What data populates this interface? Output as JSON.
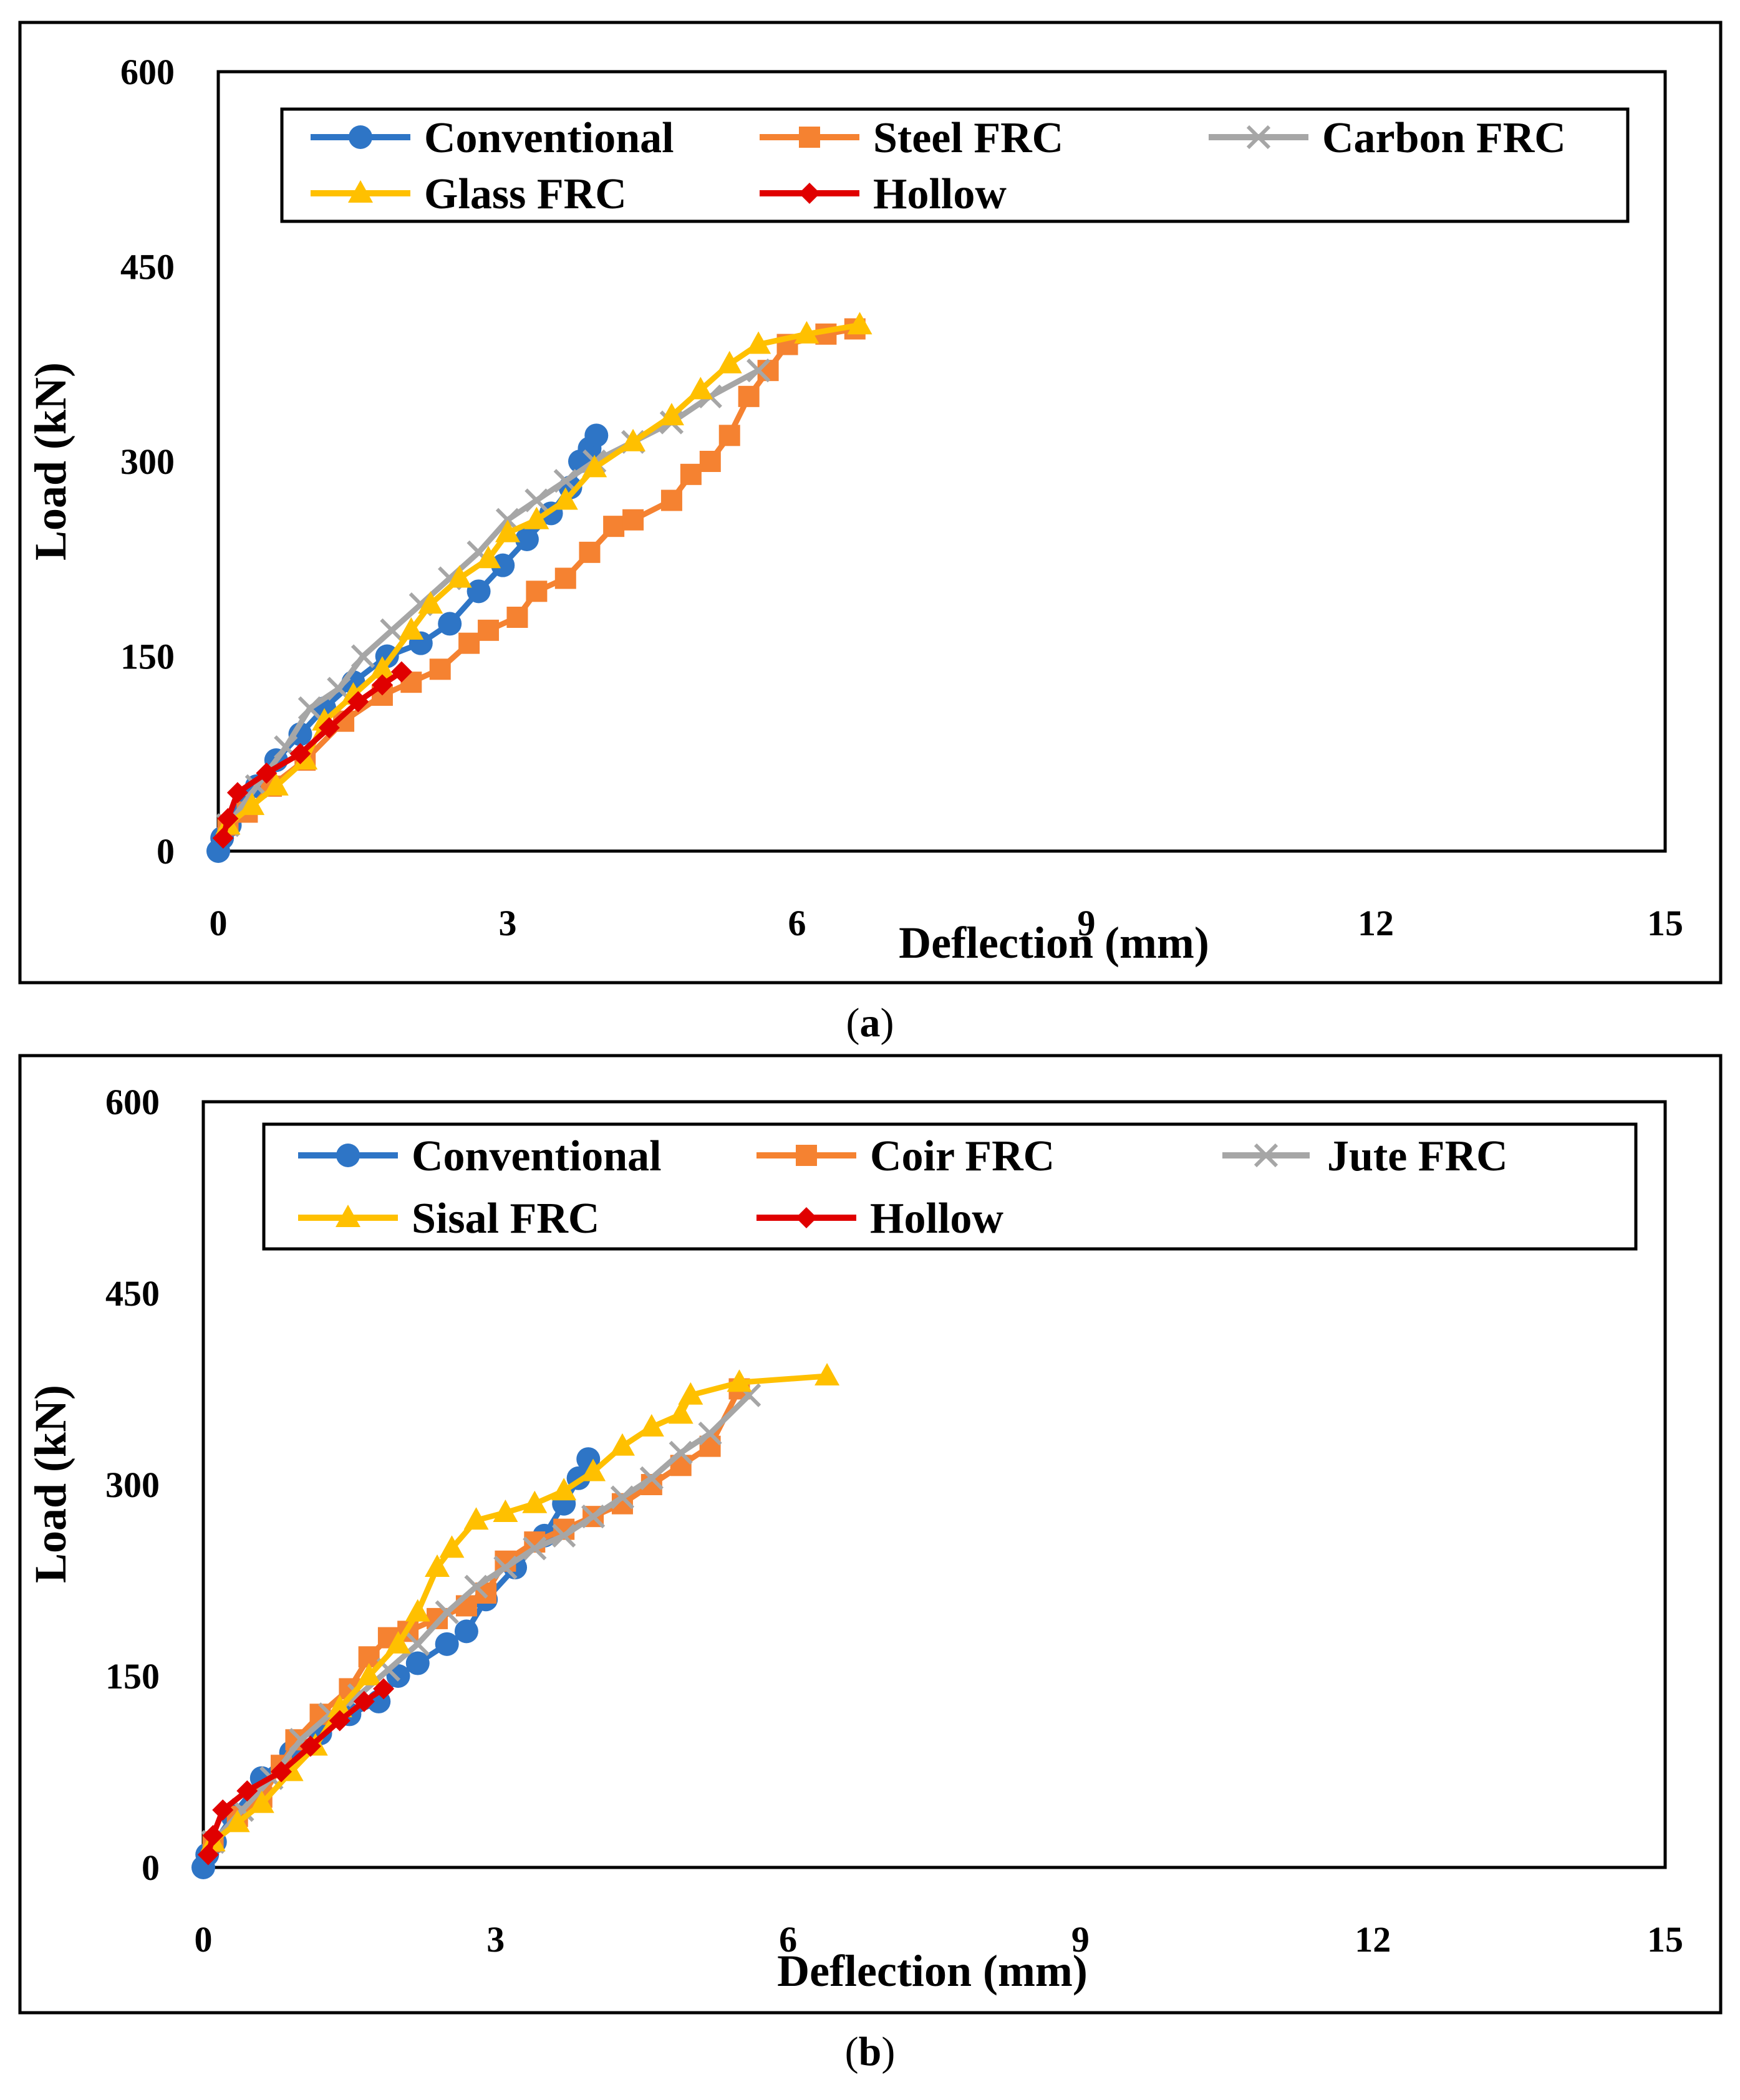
{
  "colors": {
    "Conventional": "#2E75C6",
    "Steel FRC": "#F58231",
    "Carbon FRC": "#A6A6A6",
    "Glass FRC": "#FFC000",
    "Hollow": "#E00000",
    "Coir FRC": "#F58231",
    "Jute FRC": "#A6A6A6",
    "Sisal FRC": "#FFC000"
  },
  "chart_data": [
    {
      "type": "line",
      "panel_caption": "(a)",
      "caption_letter": "a",
      "xlabel": "Deflection (mm)",
      "ylabel": "Load (kN)",
      "xlim": [
        0,
        15
      ],
      "ylim": [
        0,
        600
      ],
      "xticks": [
        0,
        3,
        6,
        9,
        12,
        15
      ],
      "yticks": [
        0,
        150,
        300,
        450,
        600
      ],
      "grid": false,
      "legend": "top",
      "series": [
        {
          "name": "Conventional",
          "marker": "circle",
          "color": "#2E75C6",
          "points": [
            [
              0,
              0
            ],
            [
              0.04,
              10
            ],
            [
              0.12,
              20
            ],
            [
              0.25,
              35
            ],
            [
              0.4,
              50
            ],
            [
              0.6,
              70
            ],
            [
              0.85,
              90
            ],
            [
              1.1,
              110
            ],
            [
              1.4,
              130
            ],
            [
              1.75,
              150
            ],
            [
              2.1,
              160
            ],
            [
              2.4,
              175
            ],
            [
              2.7,
              200
            ],
            [
              2.95,
              220
            ],
            [
              3.2,
              240
            ],
            [
              3.45,
              260
            ],
            [
              3.65,
              280
            ],
            [
              3.75,
              300
            ],
            [
              3.85,
              310
            ],
            [
              3.92,
              320
            ]
          ]
        },
        {
          "name": "Steel FRC",
          "marker": "square",
          "color": "#F58231",
          "points": [
            [
              0.1,
              20
            ],
            [
              0.3,
              30
            ],
            [
              0.55,
              50
            ],
            [
              0.9,
              70
            ],
            [
              1.3,
              100
            ],
            [
              1.7,
              120
            ],
            [
              2.0,
              130
            ],
            [
              2.3,
              140
            ],
            [
              2.6,
              160
            ],
            [
              2.8,
              170
            ],
            [
              3.1,
              180
            ],
            [
              3.3,
              200
            ],
            [
              3.6,
              210
            ],
            [
              3.85,
              230
            ],
            [
              4.1,
              250
            ],
            [
              4.3,
              255
            ],
            [
              4.7,
              270
            ],
            [
              4.9,
              290
            ],
            [
              5.1,
              300
            ],
            [
              5.3,
              320
            ],
            [
              5.5,
              350
            ],
            [
              5.7,
              370
            ],
            [
              5.9,
              390
            ],
            [
              6.3,
              398
            ],
            [
              6.6,
              402
            ]
          ]
        },
        {
          "name": "Carbon FRC",
          "marker": "x",
          "color": "#A6A6A6",
          "points": [
            [
              0.1,
              20
            ],
            [
              0.4,
              50
            ],
            [
              0.7,
              80
            ],
            [
              0.95,
              110
            ],
            [
              1.25,
              125
            ],
            [
              1.5,
              150
            ],
            [
              1.8,
              170
            ],
            [
              2.1,
              190
            ],
            [
              2.4,
              210
            ],
            [
              2.7,
              230
            ],
            [
              3.0,
              255
            ],
            [
              3.3,
              270
            ],
            [
              3.6,
              285
            ],
            [
              3.9,
              300
            ],
            [
              4.3,
              315
            ],
            [
              4.7,
              330
            ],
            [
              5.1,
              350
            ],
            [
              5.6,
              370
            ]
          ]
        },
        {
          "name": "Glass FRC",
          "marker": "triangle",
          "color": "#FFC000",
          "points": [
            [
              0.1,
              20
            ],
            [
              0.35,
              35
            ],
            [
              0.6,
              50
            ],
            [
              0.9,
              70
            ],
            [
              1.1,
              100
            ],
            [
              1.4,
              120
            ],
            [
              1.7,
              140
            ],
            [
              2.0,
              170
            ],
            [
              2.2,
              190
            ],
            [
              2.5,
              210
            ],
            [
              2.8,
              225
            ],
            [
              3.0,
              245
            ],
            [
              3.3,
              255
            ],
            [
              3.6,
              270
            ],
            [
              3.9,
              295
            ],
            [
              4.3,
              315
            ],
            [
              4.7,
              335
            ],
            [
              5.0,
              355
            ],
            [
              5.3,
              375
            ],
            [
              5.6,
              390
            ],
            [
              6.1,
              398
            ],
            [
              6.65,
              405
            ]
          ]
        },
        {
          "name": "Hollow",
          "marker": "diamond",
          "color": "#E00000",
          "points": [
            [
              0.05,
              10
            ],
            [
              0.1,
              25
            ],
            [
              0.2,
              45
            ],
            [
              0.5,
              60
            ],
            [
              0.85,
              75
            ],
            [
              1.15,
              95
            ],
            [
              1.45,
              115
            ],
            [
              1.7,
              128
            ],
            [
              1.9,
              138
            ]
          ]
        }
      ]
    },
    {
      "type": "line",
      "panel_caption": "(b)",
      "caption_letter": "b",
      "xlabel": "Deflection (mm)",
      "ylabel": "Load (kN)",
      "xlim": [
        0,
        15
      ],
      "ylim": [
        0,
        600
      ],
      "xticks": [
        0,
        3,
        6,
        9,
        12,
        15
      ],
      "yticks": [
        0,
        150,
        300,
        450,
        600
      ],
      "grid": false,
      "legend": "top",
      "series": [
        {
          "name": "Conventional",
          "marker": "circle",
          "color": "#2E75C6",
          "points": [
            [
              0,
              0
            ],
            [
              0.04,
              10
            ],
            [
              0.12,
              20
            ],
            [
              0.3,
              40
            ],
            [
              0.6,
              70
            ],
            [
              0.9,
              90
            ],
            [
              1.2,
              105
            ],
            [
              1.5,
              120
            ],
            [
              1.8,
              130
            ],
            [
              2.0,
              150
            ],
            [
              2.2,
              160
            ],
            [
              2.5,
              175
            ],
            [
              2.7,
              185
            ],
            [
              2.9,
              210
            ],
            [
              3.2,
              235
            ],
            [
              3.5,
              260
            ],
            [
              3.7,
              285
            ],
            [
              3.85,
              305
            ],
            [
              3.95,
              320
            ]
          ]
        },
        {
          "name": "Coir FRC",
          "marker": "square",
          "color": "#F58231",
          "points": [
            [
              0.1,
              20
            ],
            [
              0.35,
              40
            ],
            [
              0.6,
              55
            ],
            [
              0.8,
              80
            ],
            [
              0.95,
              100
            ],
            [
              1.2,
              120
            ],
            [
              1.5,
              140
            ],
            [
              1.7,
              165
            ],
            [
              1.9,
              180
            ],
            [
              2.1,
              185
            ],
            [
              2.4,
              195
            ],
            [
              2.7,
              205
            ],
            [
              2.9,
              215
            ],
            [
              3.1,
              240
            ],
            [
              3.4,
              255
            ],
            [
              3.7,
              265
            ],
            [
              4.0,
              275
            ],
            [
              4.3,
              285
            ],
            [
              4.6,
              300
            ],
            [
              4.9,
              315
            ],
            [
              5.2,
              330
            ],
            [
              5.5,
              375
            ]
          ]
        },
        {
          "name": "Jute FRC",
          "marker": "x",
          "color": "#A6A6A6",
          "points": [
            [
              0.1,
              20
            ],
            [
              0.4,
              45
            ],
            [
              0.7,
              70
            ],
            [
              1.0,
              100
            ],
            [
              1.3,
              120
            ],
            [
              1.6,
              135
            ],
            [
              1.9,
              155
            ],
            [
              2.2,
              175
            ],
            [
              2.5,
              200
            ],
            [
              2.8,
              220
            ],
            [
              3.1,
              235
            ],
            [
              3.4,
              250
            ],
            [
              3.7,
              260
            ],
            [
              4.0,
              275
            ],
            [
              4.3,
              290
            ],
            [
              4.6,
              305
            ],
            [
              4.9,
              325
            ],
            [
              5.2,
              340
            ],
            [
              5.6,
              370
            ]
          ]
        },
        {
          "name": "Sisal FRC",
          "marker": "triangle",
          "color": "#FFC000",
          "points": [
            [
              0.1,
              20
            ],
            [
              0.35,
              35
            ],
            [
              0.6,
              50
            ],
            [
              0.9,
              75
            ],
            [
              1.15,
              95
            ],
            [
              1.4,
              125
            ],
            [
              1.7,
              150
            ],
            [
              2.0,
              175
            ],
            [
              2.2,
              200
            ],
            [
              2.4,
              235
            ],
            [
              2.55,
              250
            ],
            [
              2.8,
              272
            ],
            [
              3.1,
              278
            ],
            [
              3.4,
              285
            ],
            [
              3.7,
              295
            ],
            [
              4.0,
              310
            ],
            [
              4.3,
              330
            ],
            [
              4.6,
              345
            ],
            [
              4.9,
              355
            ],
            [
              5.0,
              370
            ],
            [
              5.5,
              380
            ],
            [
              6.4,
              385
            ]
          ]
        },
        {
          "name": "Hollow",
          "marker": "diamond",
          "color": "#E00000",
          "points": [
            [
              0.05,
              10
            ],
            [
              0.1,
              25
            ],
            [
              0.2,
              45
            ],
            [
              0.45,
              60
            ],
            [
              0.8,
              75
            ],
            [
              1.1,
              95
            ],
            [
              1.4,
              115
            ],
            [
              1.65,
              130
            ],
            [
              1.85,
              140
            ]
          ]
        }
      ]
    }
  ]
}
